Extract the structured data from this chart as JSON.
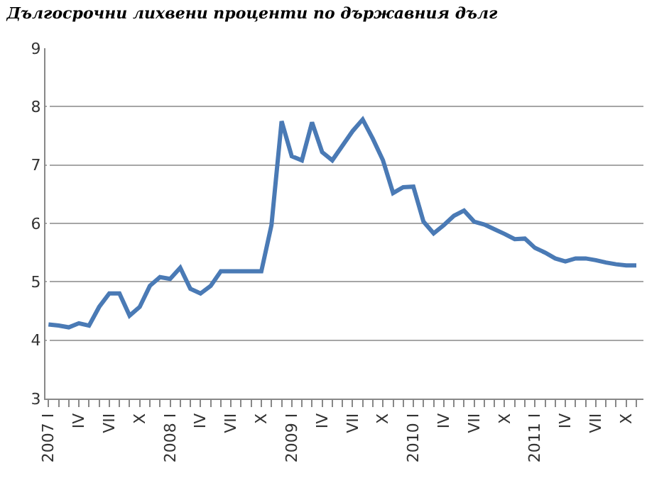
{
  "chart_data": {
    "type": "line",
    "title": "Дългосрочни лихвени проценти по държавния дълг",
    "categories": [
      "2007 I",
      null,
      null,
      "IV",
      null,
      null,
      "VII",
      null,
      null,
      "X",
      null,
      null,
      "2008 I",
      null,
      null,
      "IV",
      null,
      null,
      "VII",
      null,
      null,
      "X",
      null,
      null,
      "2009 I",
      null,
      null,
      "IV",
      null,
      null,
      "VII",
      null,
      null,
      "X",
      null,
      null,
      "2010 I",
      null,
      null,
      "IV",
      null,
      null,
      "VII",
      null,
      null,
      "X",
      null,
      null,
      "2011 I",
      null,
      null,
      "IV",
      null,
      null,
      "VII",
      null,
      null,
      "X",
      null
    ],
    "series": [
      {
        "color": "#4a7ab5",
        "values": [
          4.27,
          4.25,
          4.22,
          4.29,
          4.25,
          4.57,
          4.8,
          4.8,
          4.42,
          4.57,
          4.93,
          5.08,
          5.05,
          5.24,
          4.88,
          4.8,
          4.93,
          5.18,
          5.18,
          5.18,
          5.18,
          5.18,
          5.97,
          7.75,
          7.15,
          7.08,
          7.73,
          7.22,
          7.08,
          7.33,
          7.58,
          7.78,
          7.45,
          7.08,
          6.52,
          6.62,
          6.63,
          6.03,
          5.83,
          5.97,
          6.13,
          6.22,
          6.03,
          5.98,
          5.9,
          5.82,
          5.73,
          5.74,
          5.58,
          5.5,
          5.4,
          5.35,
          5.4,
          5.4,
          5.37,
          5.33,
          5.3,
          5.28,
          5.28
        ]
      }
    ],
    "ylim": [
      3,
      9
    ],
    "yticks": [
      3,
      4,
      5,
      6,
      7,
      8,
      9
    ],
    "grid": "y",
    "legend": false,
    "marker": "none",
    "line_style": "solid"
  }
}
